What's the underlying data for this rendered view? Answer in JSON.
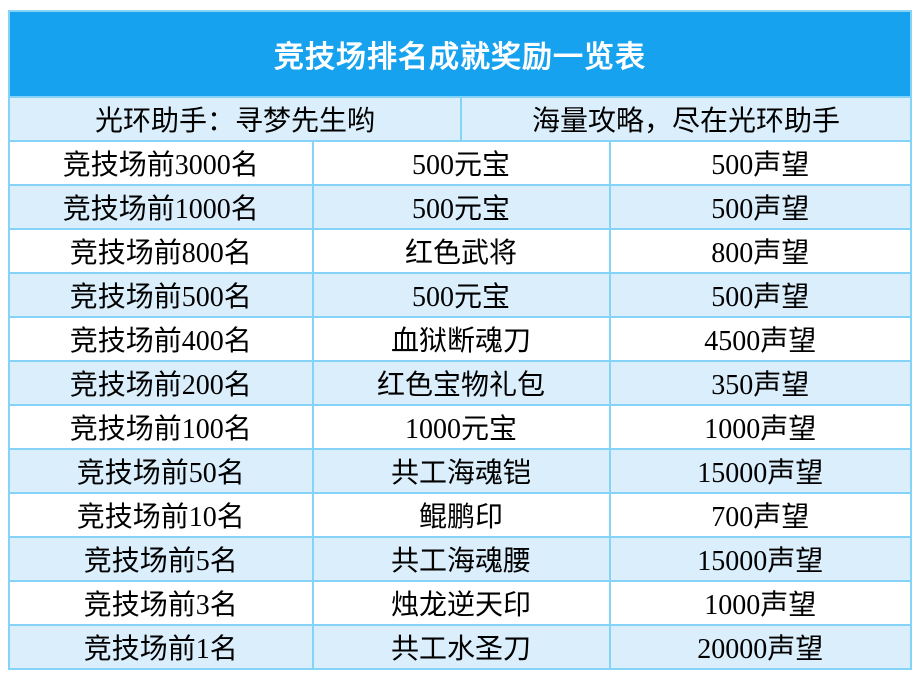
{
  "title": "竞技场排名成就奖励一览表",
  "subheader": {
    "left": "光环助手：寻梦先生哟",
    "right": "海量攻略，尽在光环助手"
  },
  "rows": [
    {
      "rank": "竞技场前3000名",
      "reward": "500元宝",
      "reputation": "500声望"
    },
    {
      "rank": "竞技场前1000名",
      "reward": "500元宝",
      "reputation": "500声望"
    },
    {
      "rank": "竞技场前800名",
      "reward": "红色武将",
      "reputation": "800声望"
    },
    {
      "rank": "竞技场前500名",
      "reward": "500元宝",
      "reputation": "500声望"
    },
    {
      "rank": "竞技场前400名",
      "reward": "血狱断魂刀",
      "reputation": "4500声望"
    },
    {
      "rank": "竞技场前200名",
      "reward": "红色宝物礼包",
      "reputation": "350声望"
    },
    {
      "rank": "竞技场前100名",
      "reward": "1000元宝",
      "reputation": "1000声望"
    },
    {
      "rank": "竞技场前50名",
      "reward": "共工海魂铠",
      "reputation": "15000声望"
    },
    {
      "rank": "竞技场前10名",
      "reward": "鲲鹏印",
      "reputation": "700声望"
    },
    {
      "rank": "竞技场前5名",
      "reward": "共工海魂腰",
      "reputation": "15000声望"
    },
    {
      "rank": "竞技场前3名",
      "reward": "烛龙逆天印",
      "reputation": "1000声望"
    },
    {
      "rank": "竞技场前1名",
      "reward": "共工水圣刀",
      "reputation": "20000声望"
    }
  ],
  "colors": {
    "title_bg": "#16a2ee",
    "title_text": "#ffffff",
    "alt_row_bg": "#dbeefb",
    "border": "#85d3f6",
    "body_text": "#000000"
  }
}
